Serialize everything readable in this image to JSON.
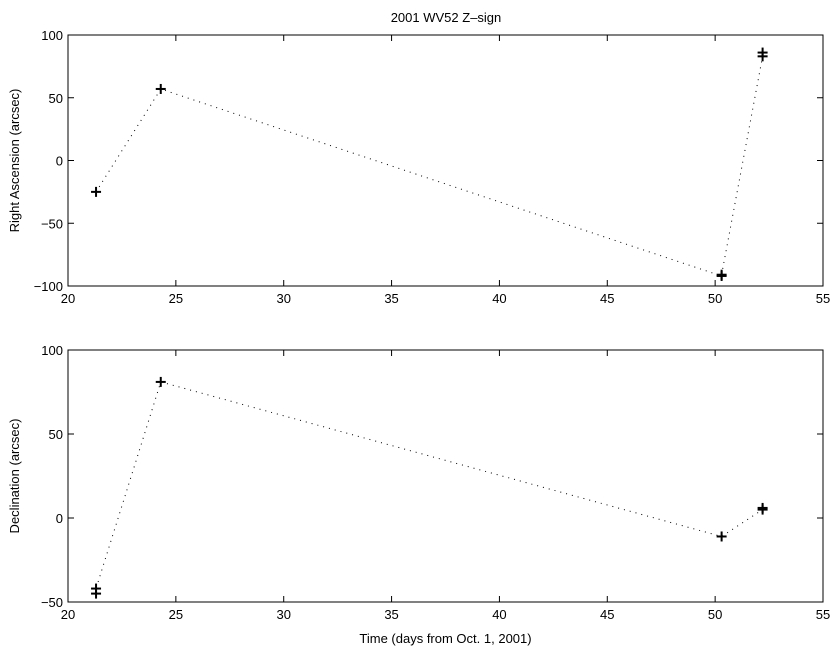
{
  "title": "2001 WV52 Z–sign",
  "chart_data": [
    {
      "type": "line",
      "ylabel": "Right Ascension (arcsec)",
      "xlabel": "",
      "xlim": [
        20,
        55
      ],
      "ylim": [
        -100,
        100
      ],
      "xticks": [
        20,
        25,
        30,
        35,
        40,
        45,
        50,
        55
      ],
      "yticks": [
        -100,
        -50,
        0,
        50,
        100
      ],
      "ytick_labels": [
        "−100",
        "−50",
        "0",
        "50",
        "100"
      ],
      "grid": false,
      "line_style": "dotted",
      "marker": "+",
      "points": [
        {
          "x": 21.3,
          "y": -25
        },
        {
          "x": 24.3,
          "y": 57
        },
        {
          "x": 50.3,
          "y": -92
        },
        {
          "x": 50.3,
          "y": -91
        },
        {
          "x": 52.2,
          "y": 83
        },
        {
          "x": 52.2,
          "y": 86
        }
      ]
    },
    {
      "type": "line",
      "ylabel": "Declination (arcsec)",
      "xlabel": "Time (days from Oct. 1, 2001)",
      "xlim": [
        20,
        55
      ],
      "ylim": [
        -50,
        100
      ],
      "xticks": [
        20,
        25,
        30,
        35,
        40,
        45,
        50,
        55
      ],
      "yticks": [
        -50,
        0,
        50,
        100
      ],
      "ytick_labels": [
        "−50",
        "0",
        "50",
        "100"
      ],
      "grid": false,
      "line_style": "dotted",
      "marker": "+",
      "points": [
        {
          "x": 21.3,
          "y": -45
        },
        {
          "x": 21.3,
          "y": -42
        },
        {
          "x": 24.3,
          "y": 81
        },
        {
          "x": 50.3,
          "y": -11
        },
        {
          "x": 52.2,
          "y": 5
        },
        {
          "x": 52.2,
          "y": 6
        }
      ]
    }
  ]
}
